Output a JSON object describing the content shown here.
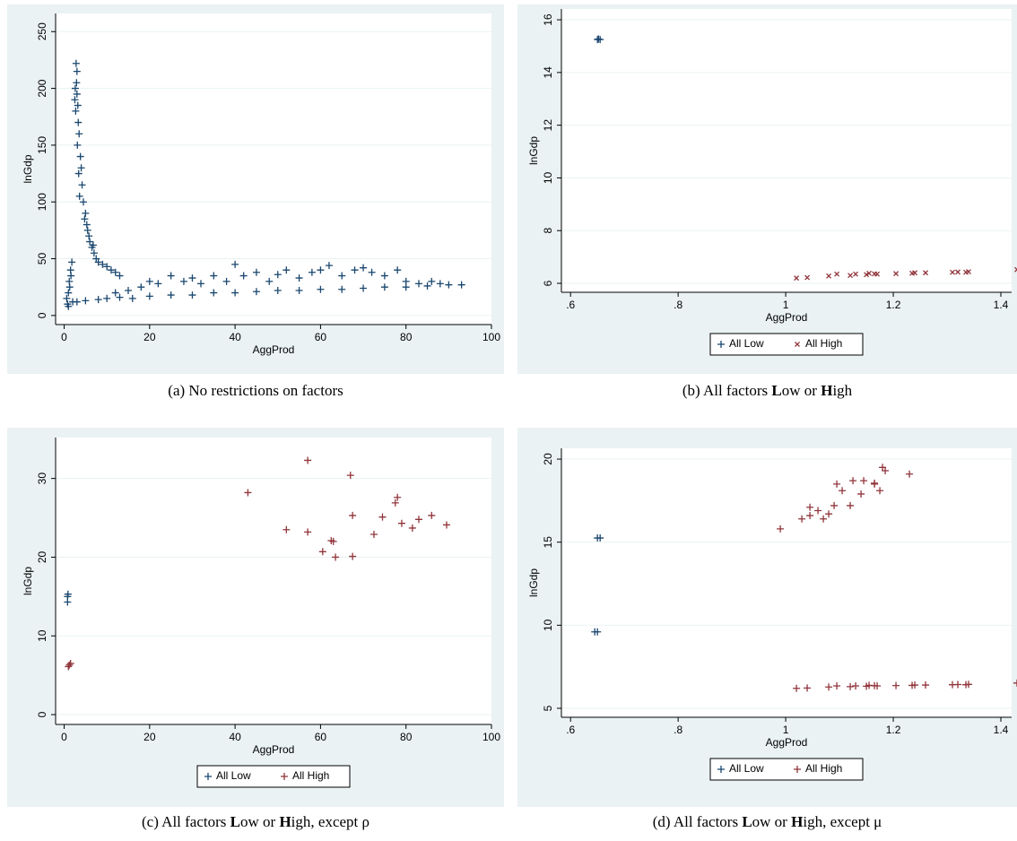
{
  "chart_data": [
    {
      "type": "scatter",
      "caption": [
        "(a) No restrictions on factors"
      ],
      "xlabel": "AggProd",
      "ylabel": "lnGdp",
      "xlim": [
        -2,
        100
      ],
      "ylim": [
        -8,
        266
      ],
      "xticks": [
        0,
        20,
        40,
        60,
        80,
        100
      ],
      "yticks": [
        0,
        50,
        100,
        150,
        200,
        250
      ],
      "grid": true,
      "series": [
        {
          "color": "#1a476f",
          "marker": "plus",
          "x": [
            0.8,
            1,
            1.2,
            1.5,
            1.8,
            1,
            0.6,
            1.3,
            2,
            1.6,
            2.6,
            2.8,
            3,
            3,
            3.2,
            3.3,
            3.5,
            3.8,
            4,
            4.2,
            4.5,
            5,
            5.3,
            5.8,
            6,
            6.5,
            7,
            7.5,
            8,
            9,
            10,
            11,
            12,
            13,
            2.7,
            2.9,
            3.1,
            3.4,
            3.6,
            4.8,
            5.5,
            6.8,
            2.5,
            3,
            5,
            8,
            10,
            13,
            16,
            20,
            25,
            30,
            35,
            40,
            45,
            50,
            55,
            60,
            65,
            70,
            75,
            80,
            85,
            90,
            93,
            12,
            15,
            18,
            20,
            22,
            25,
            28,
            30,
            32,
            35,
            38,
            40,
            42,
            45,
            48,
            50,
            52,
            55,
            58,
            60,
            62,
            65,
            68,
            70,
            72,
            75,
            78,
            80,
            83,
            86,
            88
          ],
          "values": [
            10,
            20,
            30,
            40,
            47,
            8,
            15,
            25,
            12,
            35,
            200,
            222,
            215,
            195,
            185,
            170,
            160,
            140,
            130,
            115,
            100,
            90,
            80,
            70,
            65,
            60,
            55,
            50,
            47,
            45,
            43,
            40,
            38,
            35,
            180,
            205,
            150,
            125,
            105,
            85,
            75,
            62,
            190,
            12,
            13,
            14,
            15,
            16,
            15,
            17,
            18,
            18,
            20,
            20,
            21,
            22,
            22,
            23,
            23,
            24,
            25,
            25,
            26,
            27,
            27,
            20,
            22,
            25,
            30,
            28,
            35,
            30,
            33,
            28,
            35,
            30,
            45,
            35,
            38,
            30,
            36,
            40,
            33,
            38,
            40,
            44,
            35,
            40,
            42,
            38,
            35,
            40,
            30,
            28,
            30,
            28
          ]
        }
      ]
    },
    {
      "type": "scatter",
      "caption": [
        "(b) All factors ",
        "L",
        "ow or ",
        "H",
        "igh"
      ],
      "xlabel": "AggProd",
      "ylabel": "lnGdp",
      "xlim": [
        0.583,
        1.42
      ],
      "ylim": [
        5.66,
        16.41
      ],
      "xticks": [
        {
          "value": 0.6,
          "label": ".6"
        },
        {
          "value": 0.8,
          "label": ".8"
        },
        1,
        1.2,
        1.4
      ],
      "yticks": [
        6,
        8,
        10,
        12,
        14,
        16
      ],
      "grid": true,
      "series": [
        {
          "name": "All Low",
          "color": "#1a476f",
          "marker": "plus",
          "x": [
            0.65,
            0.655,
            0.652
          ],
          "values": [
            15.25,
            15.25,
            15.27
          ]
        },
        {
          "name": "All High",
          "color": "#90353b",
          "marker": "cross",
          "x": [
            1.02,
            1.04,
            1.08,
            1.095,
            1.12,
            1.13,
            1.15,
            1.155,
            1.165,
            1.17,
            1.205,
            1.235,
            1.24,
            1.26,
            1.31,
            1.32,
            1.335,
            1.34,
            1.43
          ],
          "values": [
            6.2,
            6.22,
            6.28,
            6.35,
            6.3,
            6.35,
            6.33,
            6.38,
            6.36,
            6.35,
            6.37,
            6.38,
            6.4,
            6.4,
            6.42,
            6.43,
            6.42,
            6.44,
            6.52
          ]
        }
      ]
    },
    {
      "type": "scatter",
      "caption": [
        "(c) All factors ",
        "L",
        "ow or ",
        "H",
        "igh, except ρ"
      ],
      "xlabel": "AggProd",
      "ylabel": "lnGdp",
      "xlim": [
        -2,
        100
      ],
      "ylim": [
        -1.25,
        35.2
      ],
      "xticks": [
        0,
        20,
        40,
        60,
        80,
        100
      ],
      "yticks": [
        0,
        10,
        20,
        30
      ],
      "grid": true,
      "series": [
        {
          "name": "All Low",
          "color": "#1a476f",
          "marker": "plus",
          "x": [
            0.8,
            0.8,
            0.9
          ],
          "values": [
            15,
            14.3,
            15.3
          ]
        },
        {
          "name": "All High",
          "color": "#90353b",
          "marker": "plus",
          "x": [
            1.2,
            1.5,
            1,
            43,
            52,
            57,
            57,
            60.5,
            62.5,
            63,
            63.5,
            67,
            67.5,
            67.5,
            72.5,
            74.5,
            77.5,
            78,
            79,
            81.5,
            83,
            86,
            89.5
          ],
          "values": [
            6.3,
            6.5,
            6.1,
            28.2,
            23.5,
            32.3,
            23.2,
            20.7,
            22.1,
            22,
            20,
            30.4,
            25.3,
            20.1,
            22.9,
            25.1,
            26.9,
            27.6,
            24.3,
            23.7,
            24.8,
            25.3,
            24.1
          ]
        }
      ]
    },
    {
      "type": "scatter",
      "caption": [
        "(d) All factors ",
        "L",
        "ow or ",
        "H",
        "igh, except μ"
      ],
      "xlabel": "AggProd",
      "ylabel": "lnGdp",
      "xlim": [
        0.583,
        1.42
      ],
      "ylim": [
        4.46,
        20.65
      ],
      "xticks": [
        {
          "value": 0.6,
          "label": ".6"
        },
        {
          "value": 0.8,
          "label": ".8"
        },
        1,
        1.2,
        1.4
      ],
      "yticks": [
        5,
        10,
        15,
        20
      ],
      "grid": true,
      "series": [
        {
          "name": "All Low",
          "color": "#1a476f",
          "marker": "plus",
          "x": [
            0.645,
            0.65,
            0.655,
            0.65
          ],
          "values": [
            9.6,
            9.6,
            15.25,
            15.25
          ]
        },
        {
          "name": "All High",
          "color": "#90353b",
          "marker": "plus",
          "x": [
            0.99,
            1.03,
            1.045,
            1.045,
            1.06,
            1.07,
            1.08,
            1.09,
            1.095,
            1.105,
            1.12,
            1.125,
            1.14,
            1.145,
            1.165,
            1.175,
            1.18,
            1.185,
            1.23,
            1.165,
            1.02,
            1.04,
            1.08,
            1.095,
            1.12,
            1.13,
            1.15,
            1.155,
            1.165,
            1.17,
            1.205,
            1.235,
            1.24,
            1.26,
            1.31,
            1.32,
            1.335,
            1.34,
            1.43
          ],
          "values": [
            15.8,
            16.4,
            16.6,
            17.1,
            16.9,
            16.4,
            16.7,
            17.2,
            18.5,
            18.1,
            17.2,
            18.7,
            17.9,
            18.7,
            18.5,
            18.1,
            19.5,
            19.3,
            19.1,
            18.55,
            6.2,
            6.22,
            6.28,
            6.35,
            6.3,
            6.35,
            6.33,
            6.38,
            6.36,
            6.35,
            6.37,
            6.38,
            6.4,
            6.4,
            6.42,
            6.43,
            6.42,
            6.44,
            6.52
          ]
        }
      ]
    }
  ]
}
